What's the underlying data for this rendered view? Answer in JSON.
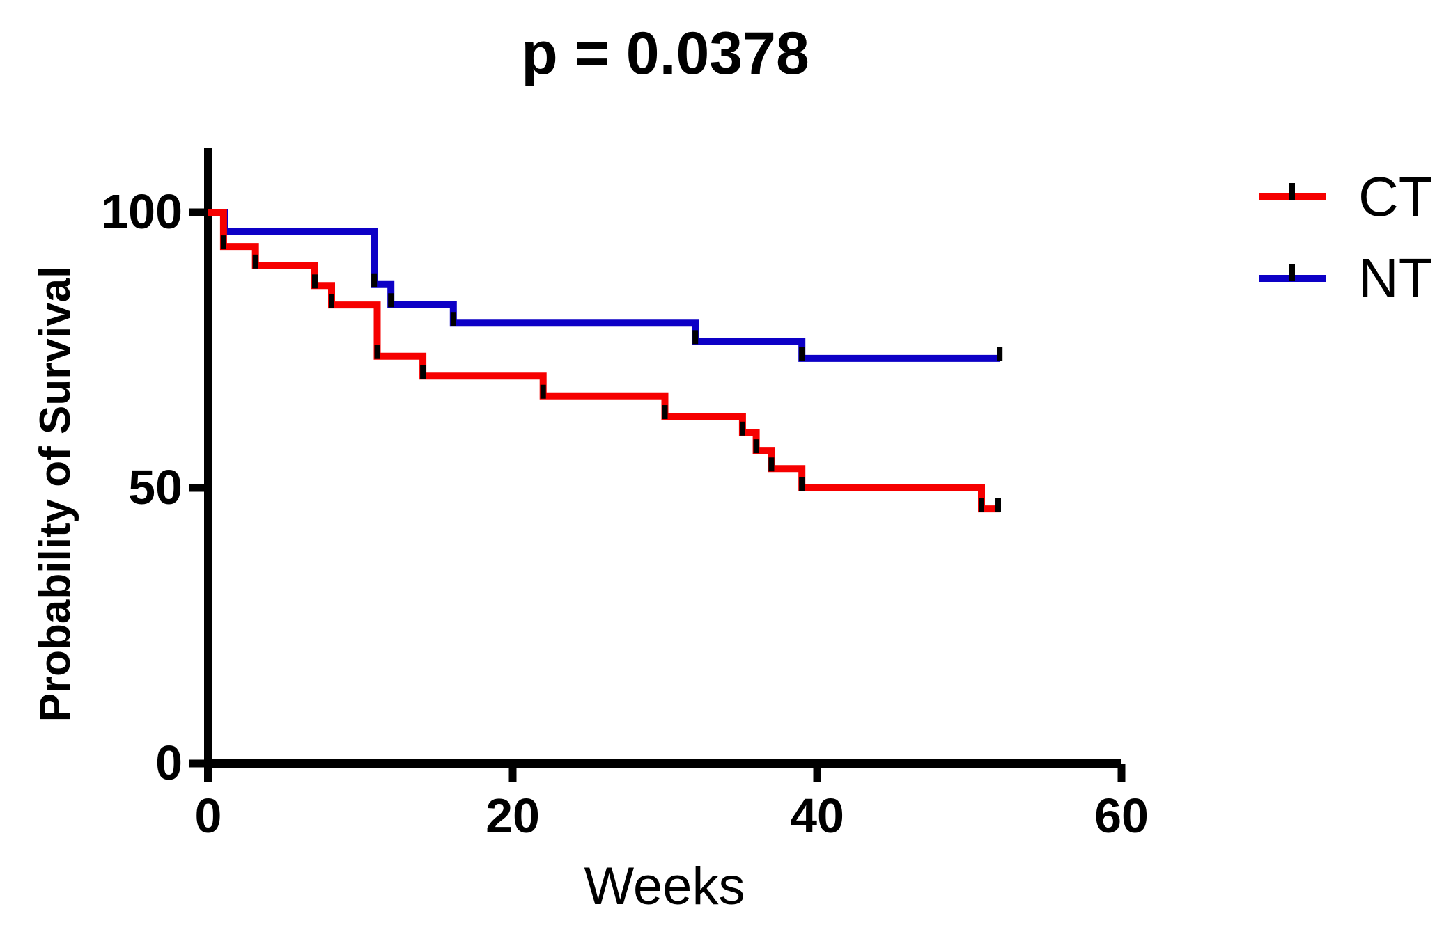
{
  "chart_data": {
    "type": "line",
    "subtype": "kaplan-meier-step-survival",
    "title": "p = 0.0378",
    "xlabel": "Weeks",
    "ylabel": "Probability of Survival",
    "xlim": [
      0,
      60
    ],
    "ylim": [
      0,
      100
    ],
    "xticks": [
      0,
      20,
      40,
      60
    ],
    "yticks": [
      0,
      50,
      100
    ],
    "grid": false,
    "legend_position": "top-right",
    "axis_color": "#000000",
    "series": [
      {
        "name": "CT",
        "color": "#f60000",
        "points": [
          [
            0,
            100
          ],
          [
            1,
            100
          ],
          [
            1,
            93.8
          ],
          [
            3.1,
            93.8
          ],
          [
            3.1,
            90.3
          ],
          [
            7,
            90.3
          ],
          [
            7,
            86.7
          ],
          [
            8.1,
            86.7
          ],
          [
            8.1,
            83.2
          ],
          [
            11.1,
            83.2
          ],
          [
            11.1,
            73.9
          ],
          [
            14.1,
            73.9
          ],
          [
            14.1,
            70.3
          ],
          [
            22,
            70.3
          ],
          [
            22,
            66.7
          ],
          [
            30,
            66.7
          ],
          [
            30,
            63
          ],
          [
            35.1,
            63
          ],
          [
            35.1,
            60
          ],
          [
            36,
            60
          ],
          [
            36,
            56.8
          ],
          [
            37,
            56.8
          ],
          [
            37,
            53.5
          ],
          [
            39,
            53.5
          ],
          [
            39,
            50
          ],
          [
            50.8,
            50
          ],
          [
            50.8,
            46.2
          ],
          [
            52,
            46.2
          ]
        ],
        "censor_ticks": [
          [
            1,
            93.8
          ],
          [
            3.1,
            90.3
          ],
          [
            7,
            86.7
          ],
          [
            8.1,
            83.2
          ],
          [
            11.1,
            73.9
          ],
          [
            14.1,
            70.3
          ],
          [
            22,
            66.7
          ],
          [
            30,
            63
          ],
          [
            35.1,
            60
          ],
          [
            36,
            56.8
          ],
          [
            37,
            53.5
          ],
          [
            39,
            50
          ],
          [
            50.8,
            46.2
          ],
          [
            51.9,
            46.2
          ]
        ]
      },
      {
        "name": "NT",
        "color": "#0d00c6",
        "points": [
          [
            0,
            100
          ],
          [
            1.1,
            100
          ],
          [
            1.1,
            96.5
          ],
          [
            10.9,
            96.5
          ],
          [
            10.9,
            86.9
          ],
          [
            12,
            86.9
          ],
          [
            12,
            83.3
          ],
          [
            16.1,
            83.3
          ],
          [
            16.1,
            79.9
          ],
          [
            32,
            79.9
          ],
          [
            32,
            76.6
          ],
          [
            39,
            76.6
          ],
          [
            39,
            73.5
          ],
          [
            52,
            73.5
          ]
        ],
        "censor_ticks": [
          [
            10.9,
            86.9
          ],
          [
            12,
            83.3
          ],
          [
            16.1,
            79.9
          ],
          [
            32,
            76.6
          ],
          [
            39,
            73.5
          ],
          [
            52,
            73.5
          ]
        ]
      }
    ]
  }
}
